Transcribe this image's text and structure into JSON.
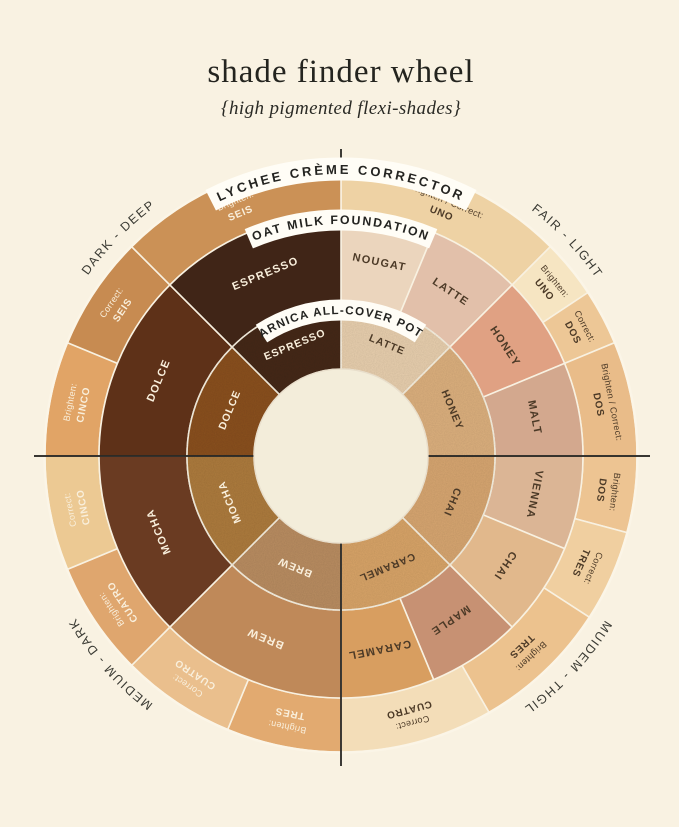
{
  "title": "shade finder wheel",
  "subtitle": "{high pigmented flexi-shades}",
  "colors": {
    "background": "#f9f2e2",
    "axis_line": "#1c1b18",
    "banner_bg": "#fffdf6",
    "banner_text": "#232320",
    "label_dark": "#4c3a27",
    "label_light": "#f9efdc",
    "quadrant_text": "#3a3a33",
    "center_fill": "#f3edda",
    "center_stroke": "#e8decb",
    "segment_gap": "#f8f1e1",
    "outer_rim": "#fbf5e7"
  },
  "quadrants": [
    {
      "label": "DARK - DEEP",
      "angle": -45.5
    },
    {
      "label": "FAIR - LIGHT",
      "angle": 46.5
    },
    {
      "label": "LIGHT - MEDIUM",
      "angle": 133,
      "render_reversed": true
    },
    {
      "label": "MEDIUM - DARK",
      "angle": 228
    }
  ],
  "rings": [
    {
      "id": "corrector",
      "product": "LYCHEE CRÈME CORRECTOR",
      "segments": [
        {
          "prefix": "Brighten / Correct:",
          "shade": "UNO",
          "start": 0,
          "end": 45,
          "color": "#eed2a4",
          "text": "dark"
        },
        {
          "prefix": "Brighten:",
          "shade": "UNO",
          "start": 45,
          "end": 56.5,
          "color": "#f6e5c2",
          "text": "dark"
        },
        {
          "prefix": "Correct:",
          "shade": "DOS",
          "start": 56.5,
          "end": 67.5,
          "color": "#edc796",
          "text": "dark"
        },
        {
          "prefix": "Brighten / Correct:",
          "shade": "DOS",
          "start": 67.5,
          "end": 90,
          "color": "#e9bc89",
          "text": "dark"
        },
        {
          "prefix": "Brighten:",
          "shade": "DOS",
          "start": 90,
          "end": 105,
          "color": "#edc492",
          "text": "dark"
        },
        {
          "prefix": "Correct:",
          "shade": "TRES",
          "start": 105,
          "end": 123,
          "color": "#f0cfa0",
          "text": "dark"
        },
        {
          "prefix": "Brighten:",
          "shade": "TRES",
          "start": 123,
          "end": 150,
          "color": "#ecc28e",
          "text": "dark"
        },
        {
          "prefix": "Correct:",
          "shade": "CUATRO",
          "start": 150,
          "end": 180,
          "color": "#f3ddb8",
          "text": "dark"
        },
        {
          "prefix": "Brighten:",
          "shade": "TRES",
          "start": 180,
          "end": 202.5,
          "color": "#e2aa70",
          "text": "light"
        },
        {
          "prefix": "Correct:",
          "shade": "CUATRO",
          "start": 202.5,
          "end": 225,
          "color": "#eabf8d",
          "text": "light"
        },
        {
          "prefix": "Brighten:",
          "shade": "CUATRO",
          "start": 225,
          "end": 247.5,
          "color": "#dfa66e",
          "text": "light"
        },
        {
          "prefix": "Correct:",
          "shade": "CINCO",
          "start": 247.5,
          "end": 270,
          "color": "#ecc993",
          "text": "light"
        },
        {
          "prefix": "Brighten:",
          "shade": "CINCO",
          "start": 270,
          "end": 292.5,
          "color": "#e1a466",
          "text": "light"
        },
        {
          "prefix": "Correct:",
          "shade": "SEIS",
          "start": 292.5,
          "end": 315,
          "color": "#c78b51",
          "text": "light"
        },
        {
          "prefix": "Brighten:",
          "shade": "SEIS",
          "start": 315,
          "end": 360,
          "color": "#cb9156",
          "text": "light"
        }
      ]
    },
    {
      "id": "foundation",
      "product": "OAT MILK FOUNDATION",
      "segments": [
        {
          "label": "NOUGAT",
          "start": 0,
          "end": 22.5,
          "color": "#ebd5bd",
          "text": "dark"
        },
        {
          "label": "LATTE",
          "start": 22.5,
          "end": 45,
          "color": "#e2c0aa",
          "text": "dark"
        },
        {
          "label": "HONEY",
          "start": 45,
          "end": 67.5,
          "color": "#e0a183",
          "text": "dark"
        },
        {
          "label": "MALT",
          "start": 67.5,
          "end": 90,
          "color": "#d3a88e",
          "text": "dark"
        },
        {
          "label": "VIENNA",
          "start": 90,
          "end": 112.5,
          "color": "#dbb595",
          "text": "dark"
        },
        {
          "label": "CHAI",
          "start": 112.5,
          "end": 135,
          "color": "#e1b88c",
          "text": "dark"
        },
        {
          "label": "MAPLE",
          "start": 135,
          "end": 157.5,
          "color": "#c79173",
          "text": "dark"
        },
        {
          "label": "CARAMEL",
          "start": 157.5,
          "end": 180,
          "color": "#d89e60",
          "text": "dark"
        },
        {
          "label": "BREW",
          "start": 180,
          "end": 225,
          "color": "#bf8959",
          "text": "light"
        },
        {
          "label": "MOCHA",
          "start": 225,
          "end": 270,
          "color": "#6a3b22",
          "text": "light"
        },
        {
          "label": "DOLCE",
          "start": 270,
          "end": 315,
          "color": "#5e3118",
          "text": "light"
        },
        {
          "label": "ESPRESSO",
          "start": 315,
          "end": 360,
          "color": "#402517",
          "text": "light"
        }
      ]
    },
    {
      "id": "concealer",
      "product": "ARNICA ALL-COVER POT",
      "segments": [
        {
          "label": "LATTE",
          "start": 0,
          "end": 45,
          "color": "#e8cfae",
          "text": "dark"
        },
        {
          "label": "HONEY",
          "start": 45,
          "end": 90,
          "color": "#dcb07e",
          "text": "dark"
        },
        {
          "label": "CHAI",
          "start": 90,
          "end": 135,
          "color": "#d7a671",
          "text": "dark"
        },
        {
          "label": "CARAMEL",
          "start": 135,
          "end": 180,
          "color": "#d8a468",
          "text": "dark"
        },
        {
          "label": "BREW",
          "start": 180,
          "end": 225,
          "color": "#b98d61",
          "text": "light"
        },
        {
          "label": "MOCHA",
          "start": 225,
          "end": 270,
          "color": "#ad7b3d",
          "text": "light"
        },
        {
          "label": "DOLCE",
          "start": 270,
          "end": 315,
          "color": "#8a5020",
          "text": "light"
        },
        {
          "label": "ESPRESSO",
          "start": 315,
          "end": 360,
          "color": "#452816",
          "text": "light"
        }
      ]
    }
  ]
}
